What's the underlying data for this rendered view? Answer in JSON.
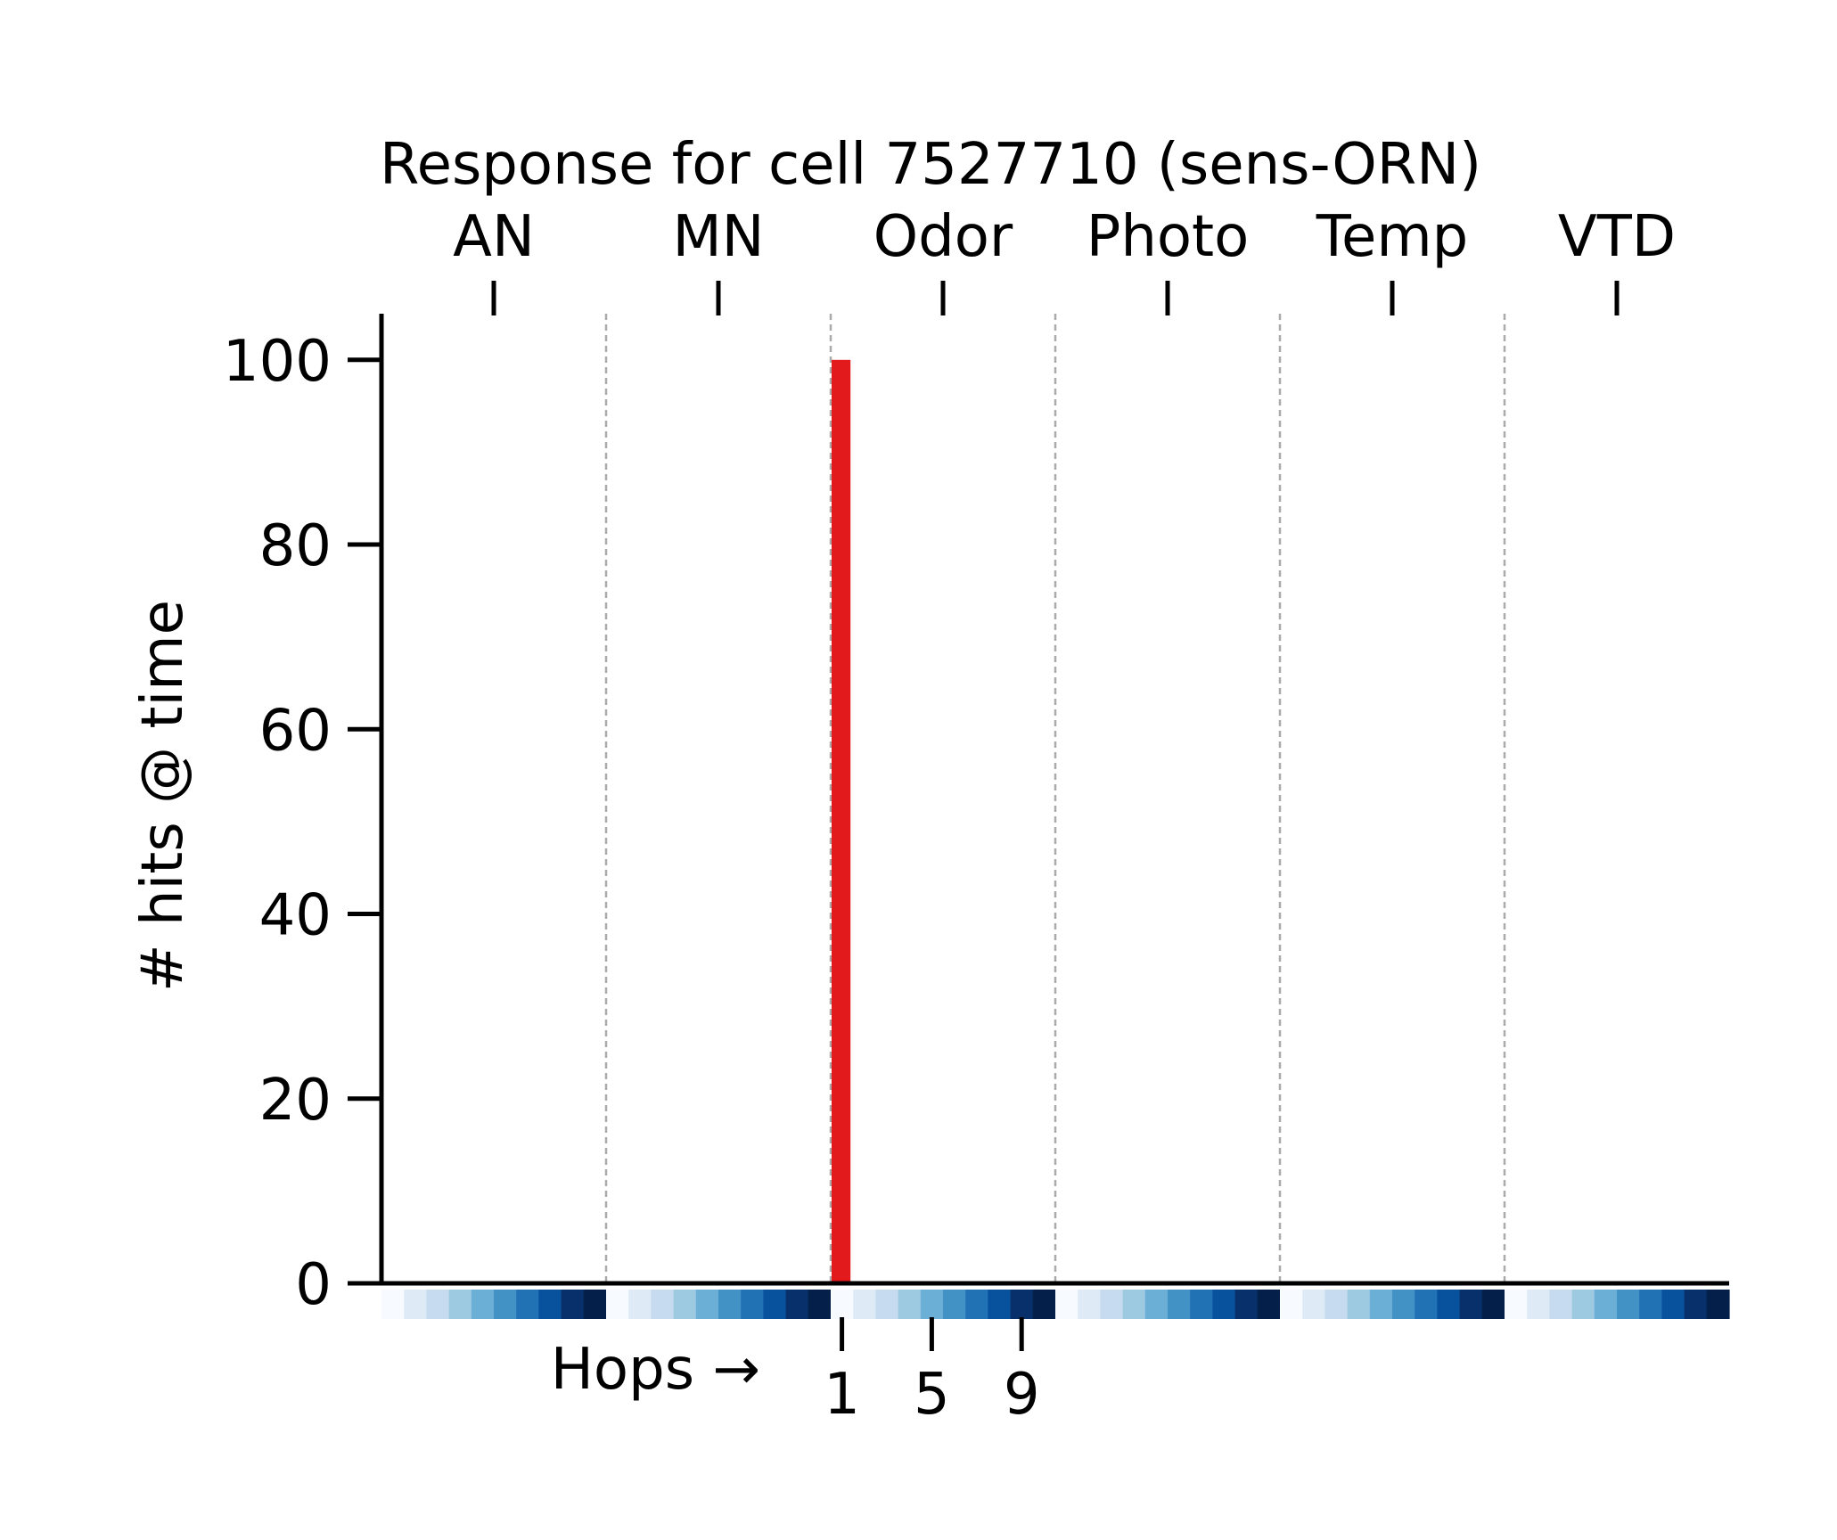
{
  "chart_data": {
    "type": "bar",
    "title": "Response for cell 7527710 (sens-ORN)",
    "ylabel": "# hits @ time",
    "ylim": [
      0,
      105
    ],
    "yticks": [
      0,
      20,
      40,
      60,
      80,
      100
    ],
    "groups": [
      "AN",
      "MN",
      "Odor",
      "Photo",
      "Temp",
      "VTD"
    ],
    "hops_per_group": 10,
    "hops_label": "Hops →",
    "hop_tick_labels": [
      "1",
      "5",
      "9"
    ],
    "hop_tick_values": [
      1,
      5,
      9
    ],
    "hop_tick_group": "Odor",
    "grid": false,
    "group_separators": "dashed",
    "bars": [
      {
        "group": "Odor",
        "hop": 1,
        "value": 100
      }
    ],
    "colors": {
      "bar": "#e31a1c",
      "separator": "#aaaaaa",
      "hop_colormap": [
        "#f7fbff",
        "#deebf7",
        "#c6dbef",
        "#9ecae1",
        "#6baed6",
        "#4292c6",
        "#2171b5",
        "#08519c",
        "#08306b",
        "#041f4a"
      ]
    }
  }
}
